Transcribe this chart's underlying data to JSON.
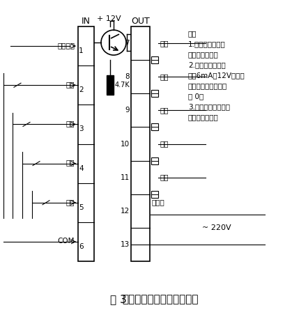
{
  "title_fig": "图 3",
  "title_main": "称量控制器的输入输出信号",
  "in_label": "IN",
  "out_label": "OUT",
  "plus12v_label": "+ 12V",
  "resistor_label": "4.7K",
  "ac220v_label": "~ 220V",
  "input_labels": [
    "称完信号",
    "停止",
    "倒料",
    "称量",
    "大粒",
    "COM"
  ],
  "input_numbers": [
    "1",
    "2",
    "3",
    "4",
    "5",
    "6"
  ],
  "output_labels": [
    "倒料",
    "下料",
    "小门",
    "中门",
    "大门",
    "电磁阀",
    ""
  ],
  "output_numbers": [
    "7",
    "8",
    "9",
    "10",
    "11",
    "12",
    "13"
  ],
  "note_lines": [
    "注：",
    "1.倒料输入为一脉",
    "冲式开关信号。",
    "2.称完信号输出电",
    "流＜6mA＋12V，直到",
    "下一次称量开始时返",
    "为 0。",
    "3.停止、称量信号输",
    "入为自锁开关。"
  ],
  "bg_color": "#ffffff",
  "line_color": "#000000",
  "text_color": "#000000"
}
